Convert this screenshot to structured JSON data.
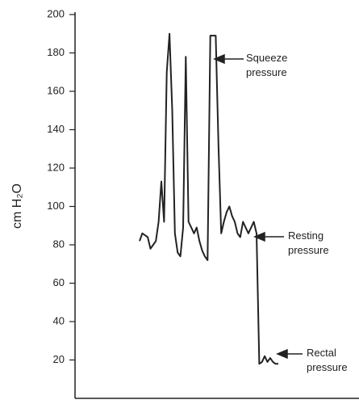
{
  "chart_data": {
    "type": "line",
    "ylabel": "cm H₂O",
    "ylim": [
      0,
      200
    ],
    "yticks": [
      20,
      40,
      60,
      80,
      100,
      120,
      140,
      160,
      180,
      200
    ],
    "series": [
      {
        "color": "#222222",
        "values": [
          82,
          86,
          85,
          84,
          78,
          80,
          82,
          92,
          113,
          92,
          170,
          190,
          150,
          86,
          76,
          74,
          89,
          178,
          92,
          89,
          86,
          89,
          82,
          77,
          74,
          72,
          189,
          189,
          189,
          132,
          86,
          92,
          97,
          100,
          95,
          92,
          86,
          84,
          92,
          89,
          86,
          89,
          92,
          86,
          18,
          19,
          22,
          19,
          21,
          19,
          18,
          18
        ]
      }
    ],
    "annotations": [
      {
        "lines": [
          "Squeeze",
          "pressure"
        ]
      },
      {
        "lines": [
          "Resting",
          "pressure"
        ]
      },
      {
        "lines": [
          "Rectal",
          "pressure"
        ]
      }
    ]
  }
}
